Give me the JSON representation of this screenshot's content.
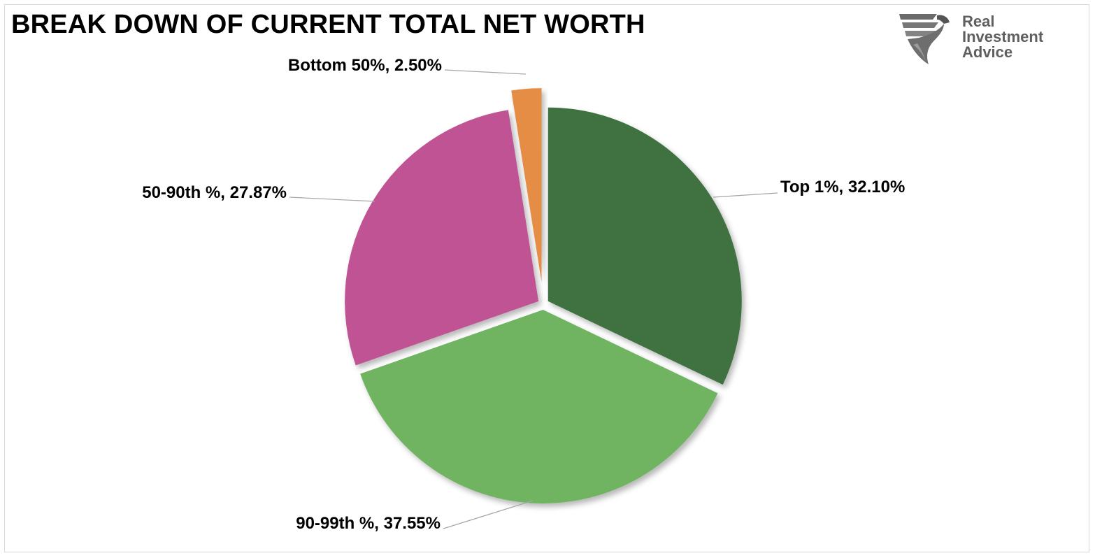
{
  "header": {
    "title": "BREAK DOWN OF CURRENT TOTAL NET WORTH"
  },
  "brand": {
    "line1": "Real",
    "line2": "Investment",
    "line3": "Advice",
    "icon": "eagle-logo-icon"
  },
  "chart_data": {
    "type": "pie",
    "title": "BREAK DOWN OF CURRENT TOTAL NET WORTH",
    "unit": "%",
    "exploded": true,
    "slices": [
      {
        "name": "Top 1%",
        "value": 32.1,
        "label": "Top 1%, 32.10%",
        "color": "#3f7140"
      },
      {
        "name": "90-99th %",
        "value": 37.55,
        "label": "90-99th %, 37.55%",
        "color": "#70b462"
      },
      {
        "name": "50-90th %",
        "value": 27.87,
        "label": "50-90th %, 27.87%",
        "color": "#c05394"
      },
      {
        "name": "Bottom 50%",
        "value": 2.5,
        "label": "Bottom 50%, 2.50%",
        "color": "#e58c45"
      }
    ]
  }
}
